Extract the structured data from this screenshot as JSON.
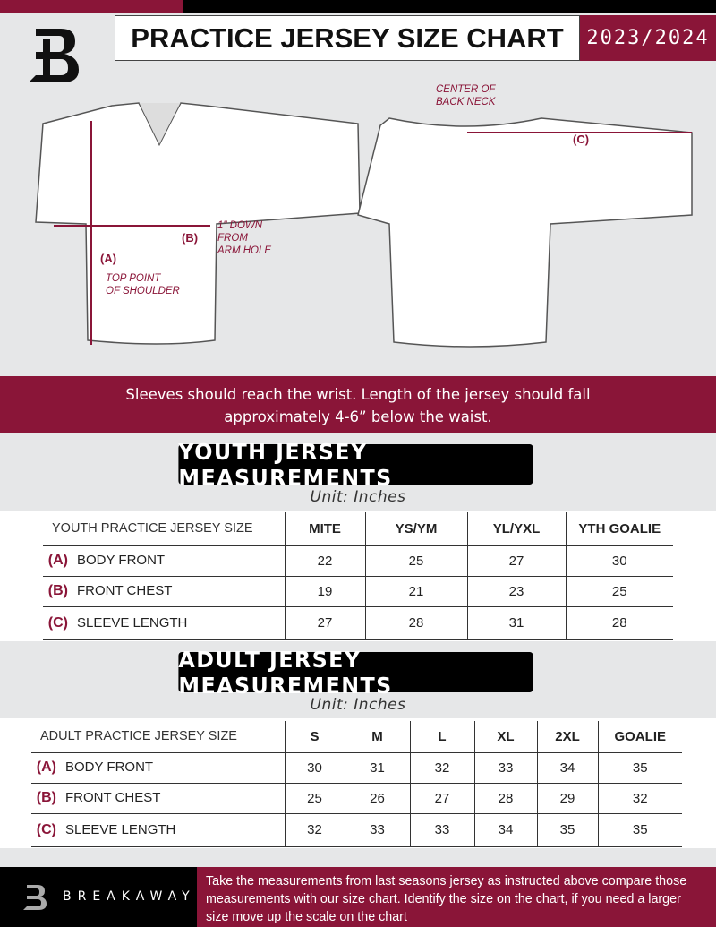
{
  "header": {
    "title": "PRACTICE JERSEY SIZE CHART",
    "season": "2023/2024"
  },
  "colors": {
    "accent": "#8a1538",
    "background": "#e6e7e8"
  },
  "diagram": {
    "front_labels": {
      "a": "(A)",
      "b": "(B)",
      "a_note": "TOP POINT\nOF SHOULDER",
      "b_note": "1\" DOWN\nFROM\nARM HOLE"
    },
    "back_labels": {
      "c": "(C)",
      "c_note": "CENTER OF\nBACK NECK"
    }
  },
  "advice": "Sleeves should reach the wrist. Length of the jersey should fall approximately 4-6” below the waist.",
  "youth": {
    "title": "YOUTH JERSEY MEASUREMENTS",
    "unit": "Unit: Inches",
    "headers": [
      "YOUTH PRACTICE JERSEY SIZE",
      "MITE",
      "YS/YM",
      "YL/YXL",
      "YTH GOALIE"
    ],
    "rows": [
      {
        "key": "(A)",
        "label": "BODY FRONT",
        "values": [
          "22",
          "25",
          "27",
          "30"
        ]
      },
      {
        "key": "(B)",
        "label": "FRONT CHEST",
        "values": [
          "19",
          "21",
          "23",
          "25"
        ]
      },
      {
        "key": "(C)",
        "label": "SLEEVE LENGTH",
        "values": [
          "27",
          "28",
          "31",
          "28"
        ]
      }
    ]
  },
  "adult": {
    "title": "ADULT JERSEY MEASUREMENTS",
    "unit": "Unit: Inches",
    "headers": [
      "ADULT PRACTICE JERSEY SIZE",
      "S",
      "M",
      "L",
      "XL",
      "2XL",
      "GOALIE"
    ],
    "rows": [
      {
        "key": "(A)",
        "label": "BODY FRONT",
        "values": [
          "30",
          "31",
          "32",
          "33",
          "34",
          "35"
        ]
      },
      {
        "key": "(B)",
        "label": "FRONT CHEST",
        "values": [
          "25",
          "26",
          "27",
          "28",
          "29",
          "32"
        ]
      },
      {
        "key": "(C)",
        "label": "SLEEVE LENGTH",
        "values": [
          "32",
          "33",
          "33",
          "34",
          "35",
          "35"
        ]
      }
    ]
  },
  "footer": {
    "brand": "BREAKAWAY",
    "text": "Take the measurements from last seasons jersey as instructed above compare those measurements  with our size chart. Identify the size on the chart, if you need a larger size move up the scale on the chart"
  }
}
